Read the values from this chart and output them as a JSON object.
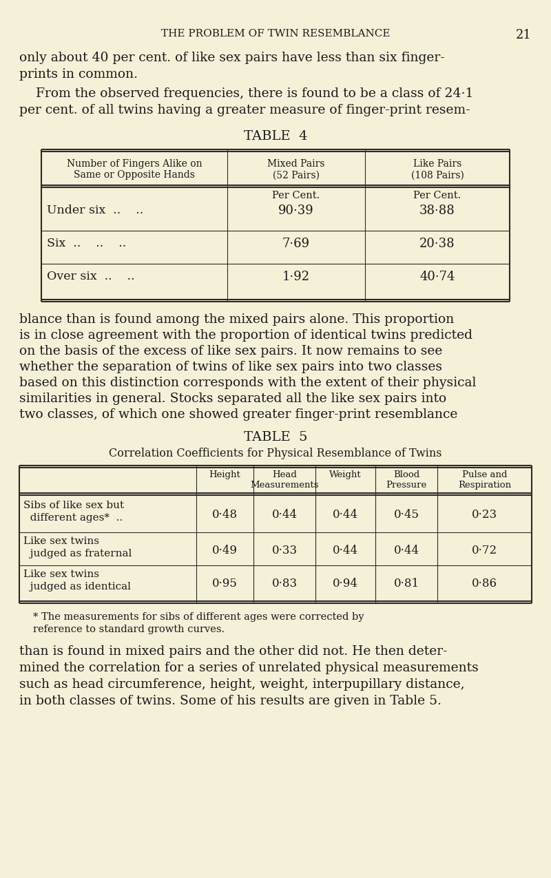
{
  "background_color": "#f5f0d8",
  "page_header": "THE PROBLEM OF TWIN RESEMBLANCE",
  "page_number": "21",
  "paragraph1": "only about 40 per cent. of like sex pairs have less than six finger-\nprints in common.",
  "paragraph2": "    From the observed frequencies, there is found to be a class of 24·1\nper cent. of all twins having a greater measure of finger-print resem-",
  "table4_title": "TABLE  4",
  "table4_col1_header": "Number of Fingers Alike on\nSame or Opposite Hands",
  "table4_col2_header": "Mixed Pairs\n(52 Pairs)",
  "table4_col3_header": "Like Pairs\n(108 Pairs)",
  "table4_subcol2": "Per Cent.",
  "table4_subcol3": "Per Cent.",
  "table4_rows": [
    [
      "Under six  ..    ..",
      "90·39",
      "38·88"
    ],
    [
      "Six  ..    ..    ..",
      "7·69",
      "20·38"
    ],
    [
      "Over six  ..    ..",
      "1·92",
      "40·74"
    ]
  ],
  "paragraph3": "blance than is found among the mixed pairs alone. This proportion\nis in close agreement with the proportion of identical twins predicted\non the basis of the excess of like sex pairs. It now remains to see\nwhether the separation of twins of like sex pairs into two classes\nbased on this distinction corresponds with the extent of their physical\nsimilarities in general. Stocks separated all the like sex pairs into\ntwo classes, of which one showed greater finger-print resemblance",
  "table5_title": "TABLE  5",
  "table5_subtitle": "Correlation Coefficients for Physical Resemblance of Twins",
  "table5_col_headers": [
    "",
    "Height",
    "Head\nMeasurements",
    "Weight",
    "Blood\nPressure",
    "Pulse and\nRespiration"
  ],
  "table5_rows": [
    [
      "Sibs of like sex but\n  different ages*  ..",
      "0·48",
      "0·44",
      "0·44",
      "0·45",
      "0·23"
    ],
    [
      "Like sex twins\n  judged as fraternal",
      "0·49",
      "0·33",
      "0·44",
      "0·44",
      "0·72"
    ],
    [
      "Like sex twins\n  judged as identical",
      "0·95",
      "0·83",
      "0·94",
      "0·81",
      "0·86"
    ]
  ],
  "footnote": "* The measurements for sibs of different ages were corrected by\nreference to standard growth curves.",
  "paragraph4": "than is found in mixed pairs and the other did not. He then deter-\nmined the correlation for a series of unrelated physical measurements\nsuch as head circumference, height, weight, interpupillary distance,\nin both classes of twins. Some of his results are given in Table 5.",
  "text_color": "#1a1a1a",
  "table_border_color": "#2a2a2a",
  "font_size_body": 13,
  "font_size_header": 12,
  "font_size_small": 10
}
